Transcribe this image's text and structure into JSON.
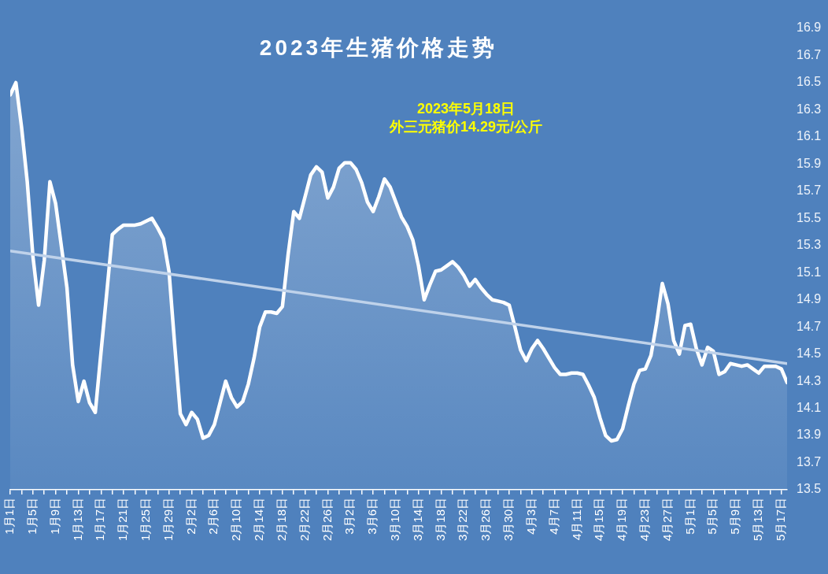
{
  "chart_data": {
    "type": "area",
    "title": "2023年生猪价格走势",
    "annotations": [
      "2023年5月18日",
      "外三元猪价14.29元/公斤"
    ],
    "x": [
      "--01-01",
      "--01-02",
      "--01-03",
      "--01-04",
      "--01-05",
      "--01-06",
      "--01-07",
      "--01-08",
      "--01-09",
      "--01-10",
      "--01-11",
      "--01-12",
      "--01-13",
      "--01-14",
      "--01-15",
      "--01-16",
      "--01-17",
      "--01-18",
      "--01-19",
      "--01-20",
      "--01-21",
      "--01-22",
      "--01-23",
      "--01-24",
      "--01-25",
      "--01-26",
      "--01-27",
      "--01-28",
      "--01-29",
      "--01-30",
      "--01-31",
      "--02-01",
      "--02-02",
      "--02-03",
      "--02-04",
      "--02-05",
      "--02-06",
      "--02-07",
      "--02-08",
      "--02-09",
      "--02-10",
      "--02-11",
      "--02-12",
      "--02-13",
      "--02-14",
      "--02-15",
      "--02-16",
      "--02-17",
      "--02-18",
      "--02-19",
      "--02-20",
      "--02-21",
      "--02-22",
      "--02-23",
      "--02-24",
      "--02-25",
      "--02-26",
      "--02-27",
      "--02-28",
      "--03-01",
      "--03-02",
      "--03-03",
      "--03-04",
      "--03-05",
      "--03-06",
      "--03-07",
      "--03-08",
      "--03-09",
      "--03-10",
      "--03-11",
      "--03-12",
      "--03-13",
      "--03-14",
      "--03-15",
      "--03-16",
      "--03-17",
      "--03-18",
      "--03-19",
      "--03-20",
      "--03-21",
      "--03-22",
      "--03-23",
      "--03-24",
      "--03-25",
      "--03-26",
      "--03-27",
      "--03-28",
      "--03-29",
      "--03-30",
      "--03-31",
      "--04-01",
      "--04-02",
      "--04-03",
      "--04-04",
      "--04-05",
      "--04-06",
      "--04-07",
      "--04-08",
      "--04-09",
      "--04-10",
      "--04-11",
      "--04-12",
      "--04-13",
      "--04-14",
      "--04-15",
      "--04-16",
      "--04-17",
      "--04-18",
      "--04-19",
      "--04-20",
      "--04-21",
      "--04-22",
      "--04-23",
      "--04-24",
      "--04-25",
      "--04-26",
      "--04-27",
      "--04-28",
      "--04-29",
      "--04-30",
      "--05-01",
      "--05-02",
      "--05-03",
      "--05-04",
      "--05-05",
      "--05-06",
      "--05-07",
      "--05-08",
      "--05-09",
      "--05-10",
      "--05-11",
      "--05-12",
      "--05-13",
      "--05-14",
      "--05-15",
      "--05-16",
      "--05-17",
      "--05-18"
    ],
    "series": [
      {
        "color": "#ffffff",
        "values": [
          16.41,
          16.5,
          16.17,
          15.77,
          15.22,
          14.86,
          15.19,
          15.77,
          15.61,
          15.3,
          14.99,
          14.42,
          14.15,
          14.3,
          14.14,
          14.07,
          14.51,
          14.94,
          15.38,
          15.42,
          15.45,
          15.45,
          15.45,
          15.46,
          15.48,
          15.5,
          15.43,
          15.35,
          15.11,
          14.57,
          14.06,
          13.98,
          14.07,
          14.02,
          13.88,
          13.9,
          13.98,
          14.14,
          14.3,
          14.18,
          14.11,
          14.15,
          14.28,
          14.47,
          14.7,
          14.81,
          14.81,
          14.8,
          14.85,
          15.23,
          15.55,
          15.5,
          15.66,
          15.82,
          15.88,
          15.84,
          15.65,
          15.73,
          15.87,
          15.91,
          15.91,
          15.86,
          15.76,
          15.62,
          15.55,
          15.66,
          15.79,
          15.73,
          15.62,
          15.51,
          15.44,
          15.34,
          15.15,
          14.9,
          15.01,
          15.11,
          15.12,
          15.15,
          15.18,
          15.14,
          15.08,
          15.0,
          15.05,
          14.99,
          14.94,
          14.9,
          14.89,
          14.88,
          14.86,
          14.7,
          14.53,
          14.45,
          14.54,
          14.6,
          14.54,
          14.47,
          14.4,
          14.35,
          14.35,
          14.36,
          14.36,
          14.35,
          14.27,
          14.18,
          14.03,
          13.9,
          13.86,
          13.87,
          13.95,
          14.12,
          14.28,
          14.38,
          14.39,
          14.49,
          14.73,
          15.02,
          14.87,
          14.6,
          14.5,
          14.71,
          14.72,
          14.54,
          14.42,
          14.55,
          14.52,
          14.35,
          14.37,
          14.43,
          14.42,
          14.41,
          14.42,
          14.39,
          14.36,
          14.41,
          14.41,
          14.41,
          14.39,
          14.29
        ]
      },
      {
        "type": "line",
        "color": "#bfd2ea",
        "x": [
          "--01-01",
          "--05-18"
        ],
        "values": [
          15.26,
          14.43
        ]
      }
    ],
    "xlim": [
      "--01-01",
      "--05-18"
    ],
    "xticks": [
      {
        "value": "--01-01",
        "label": "1月1日"
      },
      {
        "value": "--01-03",
        "label": null
      },
      {
        "value": "--01-05",
        "label": "1月5日"
      },
      {
        "value": "--01-07",
        "label": null
      },
      {
        "value": "--01-09",
        "label": "1月9日"
      },
      {
        "value": "--01-11",
        "label": null
      },
      {
        "value": "--01-13",
        "label": "1月13日"
      },
      {
        "value": "--01-15",
        "label": null
      },
      {
        "value": "--01-17",
        "label": "1月17日"
      },
      {
        "value": "--01-19",
        "label": null
      },
      {
        "value": "--01-21",
        "label": "1月21日"
      },
      {
        "value": "--01-23",
        "label": null
      },
      {
        "value": "--01-25",
        "label": "1月25日"
      },
      {
        "value": "--01-27",
        "label": null
      },
      {
        "value": "--01-29",
        "label": "1月29日"
      },
      {
        "value": "--01-31",
        "label": null
      },
      {
        "value": "--02-02",
        "label": "2月2日"
      },
      {
        "value": "--02-04",
        "label": null
      },
      {
        "value": "--02-06",
        "label": "2月6日"
      },
      {
        "value": "--02-08",
        "label": null
      },
      {
        "value": "--02-10",
        "label": "2月10日"
      },
      {
        "value": "--02-12",
        "label": null
      },
      {
        "value": "--02-14",
        "label": "2月14日"
      },
      {
        "value": "--02-16",
        "label": null
      },
      {
        "value": "--02-18",
        "label": "2月18日"
      },
      {
        "value": "--02-20",
        "label": null
      },
      {
        "value": "--02-22",
        "label": "2月22日"
      },
      {
        "value": "--02-24",
        "label": null
      },
      {
        "value": "--02-26",
        "label": "2月26日"
      },
      {
        "value": "--02-28",
        "label": null
      },
      {
        "value": "--03-02",
        "label": "3月2日"
      },
      {
        "value": "--03-04",
        "label": null
      },
      {
        "value": "--03-06",
        "label": "3月6日"
      },
      {
        "value": "--03-08",
        "label": null
      },
      {
        "value": "--03-10",
        "label": "3月10日"
      },
      {
        "value": "--03-12",
        "label": null
      },
      {
        "value": "--03-14",
        "label": "3月14日"
      },
      {
        "value": "--03-16",
        "label": null
      },
      {
        "value": "--03-18",
        "label": "3月18日"
      },
      {
        "value": "--03-20",
        "label": null
      },
      {
        "value": "--03-22",
        "label": "3月22日"
      },
      {
        "value": "--03-24",
        "label": null
      },
      {
        "value": "--03-26",
        "label": "3月26日"
      },
      {
        "value": "--03-28",
        "label": null
      },
      {
        "value": "--03-30",
        "label": "3月30日"
      },
      {
        "value": "--04-01",
        "label": null
      },
      {
        "value": "--04-03",
        "label": "4月3日"
      },
      {
        "value": "--04-05",
        "label": null
      },
      {
        "value": "--04-07",
        "label": "4月7日"
      },
      {
        "value": "--04-09",
        "label": null
      },
      {
        "value": "--04-11",
        "label": "4月11日"
      },
      {
        "value": "--04-13",
        "label": null
      },
      {
        "value": "--04-15",
        "label": "4月15日"
      },
      {
        "value": "--04-17",
        "label": null
      },
      {
        "value": "--04-19",
        "label": "4月19日"
      },
      {
        "value": "--04-21",
        "label": null
      },
      {
        "value": "--04-23",
        "label": "4月23日"
      },
      {
        "value": "--04-25",
        "label": null
      },
      {
        "value": "--04-27",
        "label": "4月27日"
      },
      {
        "value": "--04-29",
        "label": null
      },
      {
        "value": "--05-01",
        "label": "5月1日"
      },
      {
        "value": "--05-03",
        "label": null
      },
      {
        "value": "--05-05",
        "label": "5月5日"
      },
      {
        "value": "--05-07",
        "label": null
      },
      {
        "value": "--05-09",
        "label": "5月9日"
      },
      {
        "value": "--05-11",
        "label": null
      },
      {
        "value": "--05-13",
        "label": "5月13日"
      },
      {
        "value": "--05-15",
        "label": null
      },
      {
        "value": "--05-17",
        "label": "5月17日"
      }
    ],
    "ylim": [
      13.5,
      16.9
    ],
    "yticks": [
      13.5,
      13.7,
      13.9,
      14.1,
      14.3,
      14.5,
      14.7,
      14.9,
      15.1,
      15.3,
      15.5,
      15.7,
      15.9,
      16.1,
      16.3,
      16.5,
      16.7,
      16.9
    ],
    "marker": "none"
  }
}
